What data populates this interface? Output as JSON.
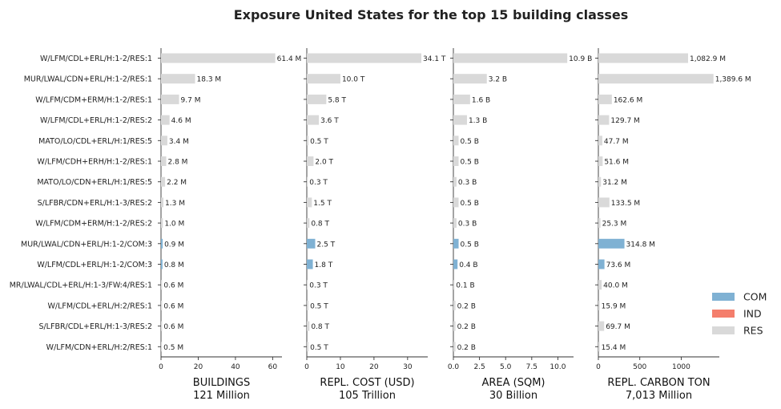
{
  "chart_data": {
    "type": "bar",
    "title": "Exposure United States for the top 15 building classes",
    "categories": [
      "W/LFM/CDL+ERL/H:1-2/RES:1",
      "MUR/LWAL/CDN+ERL/H:1-2/RES:1",
      "W/LFM/CDM+ERM/H:1-2/RES:1",
      "W/LFM/CDL+ERL/H:1-2/RES:2",
      "MATO/LO/CDL+ERL/H:1/RES:5",
      "W/LFM/CDH+ERH/H:1-2/RES:1",
      "MATO/LO/CDN+ERL/H:1/RES:5",
      "S/LFBR/CDN+ERL/H:1-3/RES:2",
      "W/LFM/CDM+ERM/H:1-2/RES:2",
      "MUR/LWAL/CDN+ERL/H:1-2/COM:3",
      "W/LFM/CDL+ERL/H:1-2/COM:3",
      "MR/LWAL/CDL+ERL/H:1-3/FW:4/RES:1",
      "W/LFM/CDL+ERL/H:2/RES:1",
      "S/LFBR/CDL+ERL/H:1-3/RES:2",
      "W/LFM/CDN+ERL/H:2/RES:1"
    ],
    "occupancy": [
      "RES",
      "RES",
      "RES",
      "RES",
      "RES",
      "RES",
      "RES",
      "RES",
      "RES",
      "COM",
      "COM",
      "RES",
      "RES",
      "RES",
      "RES"
    ],
    "panels": [
      {
        "xlabel": "BUILDINGS",
        "total": "121 Million",
        "xlim": [
          0,
          65
        ],
        "ticks": [
          0,
          20,
          40,
          60
        ],
        "tick_labels": [
          "0",
          "20",
          "40",
          "60"
        ],
        "values": [
          61.4,
          18.3,
          9.7,
          4.6,
          3.4,
          2.8,
          2.2,
          1.3,
          1.0,
          0.9,
          0.8,
          0.6,
          0.6,
          0.6,
          0.5
        ],
        "labels": [
          "61.4 M",
          "18.3 M",
          "9.7 M",
          "4.6 M",
          "3.4 M",
          "2.8 M",
          "2.2 M",
          "1.3 M",
          "1.0 M",
          "0.9 M",
          "0.8 M",
          "0.6 M",
          "0.6 M",
          "0.6 M",
          "0.5 M"
        ]
      },
      {
        "xlabel": "REPL. COST (USD)",
        "total": "105 Trillion",
        "xlim": [
          0,
          36
        ],
        "ticks": [
          0,
          10,
          20,
          30
        ],
        "tick_labels": [
          "0",
          "10",
          "20",
          "30"
        ],
        "values": [
          34.1,
          10.0,
          5.8,
          3.6,
          0.5,
          2.0,
          0.3,
          1.5,
          0.8,
          2.5,
          1.8,
          0.3,
          0.5,
          0.8,
          0.5
        ],
        "labels": [
          "34.1 T",
          "10.0 T",
          "5.8 T",
          "3.6 T",
          "0.5 T",
          "2.0 T",
          "0.3 T",
          "1.5 T",
          "0.8 T",
          "2.5 T",
          "1.8 T",
          "0.3 T",
          "0.5 T",
          "0.8 T",
          "0.5 T"
        ]
      },
      {
        "xlabel": "AREA (SQM)",
        "total": "30 Billion",
        "xlim": [
          0,
          11.5
        ],
        "ticks": [
          0,
          2.5,
          5.0,
          7.5,
          10.0
        ],
        "tick_labels": [
          "0.0",
          "2.5",
          "5.0",
          "7.5",
          "10.0"
        ],
        "values": [
          10.9,
          3.2,
          1.6,
          1.3,
          0.5,
          0.5,
          0.3,
          0.5,
          0.3,
          0.5,
          0.4,
          0.1,
          0.2,
          0.2,
          0.2
        ],
        "labels": [
          "10.9 B",
          "3.2 B",
          "1.6 B",
          "1.3 B",
          "0.5 B",
          "0.5 B",
          "0.3 B",
          "0.5 B",
          "0.3 B",
          "0.5 B",
          "0.4 B",
          "0.1 B",
          "0.2 B",
          "0.2 B",
          "0.2 B"
        ]
      },
      {
        "xlabel": "REPL. CARBON TON",
        "total": "7,013 Million",
        "xlim": [
          0,
          1460
        ],
        "ticks": [
          0,
          500,
          1000
        ],
        "tick_labels": [
          "0",
          "500",
          "1000"
        ],
        "values": [
          1082.9,
          1389.6,
          162.6,
          129.7,
          47.7,
          51.6,
          31.2,
          133.5,
          25.3,
          314.8,
          73.6,
          40.0,
          15.9,
          69.7,
          15.4
        ],
        "labels": [
          "1,082.9 M",
          "1,389.6 M",
          "162.6 M",
          "129.7 M",
          "47.7 M",
          "51.6 M",
          "31.2 M",
          "133.5 M",
          "25.3 M",
          "314.8 M",
          "73.6 M",
          "40.0 M",
          "15.9 M",
          "69.7 M",
          "15.4 M"
        ]
      }
    ],
    "legend": [
      {
        "name": "COM",
        "color": "#7fb1d3"
      },
      {
        "name": "IND",
        "color": "#f47e6c"
      },
      {
        "name": "RES",
        "color": "#d9d9d9"
      }
    ],
    "legend_position": "right"
  }
}
